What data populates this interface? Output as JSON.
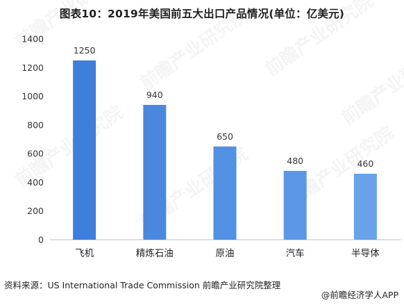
{
  "chart_data": {
    "type": "bar",
    "title": "图表10：2019年美国前五大出口产品情况(单位：亿美元)",
    "categories": [
      "飞机",
      "精炼石油",
      "原油",
      "汽车",
      "半导体"
    ],
    "values": [
      1250,
      940,
      650,
      480,
      460
    ],
    "ylim": [
      0,
      1400
    ],
    "yticks": [
      0,
      200,
      400,
      600,
      800,
      1000,
      1200,
      1400
    ],
    "xlabel": "",
    "ylabel": "",
    "grid": false,
    "bar_colors": [
      "#3f7fdc",
      "#4a88e0",
      "#5290e3",
      "#5b97e6",
      "#6aa2ea"
    ],
    "watermark": "前瞻产业研究院"
  },
  "footer": {
    "source": "资料来源：US International Trade Commission 前瞻产业研究院整理",
    "brand": "@前瞻经济学人APP"
  }
}
